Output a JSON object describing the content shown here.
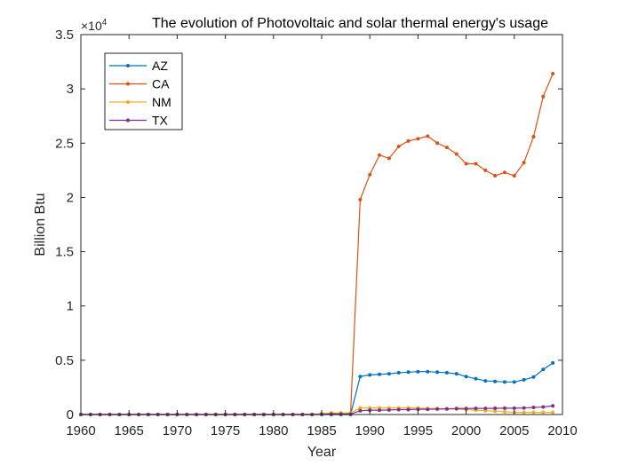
{
  "chart_data": {
    "type": "line",
    "title": "The evolution of Photovoltaic and solar thermal energy's usage",
    "xlabel": "Year",
    "ylabel": "Billion Btu",
    "xlim": [
      1960,
      2010
    ],
    "ylim": [
      0,
      35000
    ],
    "xticks": [
      1960,
      1965,
      1970,
      1975,
      1980,
      1985,
      1990,
      1995,
      2000,
      2005,
      2010
    ],
    "yticks": [
      0,
      5000,
      10000,
      15000,
      20000,
      25000,
      30000,
      35000
    ],
    "ytick_labels": [
      "0",
      "0.5",
      "1",
      "1.5",
      "2",
      "2.5",
      "3",
      "3.5"
    ],
    "y_exponent": {
      "base": "×10",
      "power": "4"
    },
    "grid": false,
    "legend_position": "top-left",
    "x": [
      1960,
      1961,
      1962,
      1963,
      1964,
      1965,
      1966,
      1967,
      1968,
      1969,
      1970,
      1971,
      1972,
      1973,
      1974,
      1975,
      1976,
      1977,
      1978,
      1979,
      1980,
      1981,
      1982,
      1983,
      1984,
      1985,
      1986,
      1987,
      1988,
      1989,
      1990,
      1991,
      1992,
      1993,
      1994,
      1995,
      1996,
      1997,
      1998,
      1999,
      2000,
      2001,
      2002,
      2003,
      2004,
      2005,
      2006,
      2007,
      2008,
      2009
    ],
    "series": [
      {
        "name": "AZ",
        "color": "#0072BD",
        "values": [
          0,
          0,
          0,
          0,
          0,
          0,
          0,
          0,
          0,
          0,
          0,
          0,
          0,
          0,
          0,
          0,
          0,
          0,
          0,
          0,
          0,
          0,
          0,
          0,
          0,
          0,
          0,
          0,
          0,
          3500,
          3650,
          3700,
          3750,
          3850,
          3900,
          3950,
          3950,
          3900,
          3850,
          3750,
          3500,
          3300,
          3100,
          3050,
          3000,
          3000,
          3200,
          3450,
          4150,
          4750
        ]
      },
      {
        "name": "CA",
        "color": "#D95319",
        "values": [
          0,
          0,
          0,
          0,
          0,
          0,
          0,
          0,
          0,
          0,
          0,
          0,
          0,
          0,
          0,
          0,
          0,
          0,
          0,
          0,
          0,
          0,
          0,
          0,
          0,
          50,
          100,
          100,
          100,
          19800,
          22100,
          23900,
          23600,
          24700,
          25200,
          25400,
          25650,
          25000,
          24600,
          24000,
          23100,
          23100,
          22500,
          22000,
          22300,
          22000,
          23200,
          25600,
          29300,
          31400
        ]
      },
      {
        "name": "NM",
        "color": "#EDB120",
        "values": [
          0,
          0,
          0,
          0,
          0,
          0,
          0,
          0,
          0,
          0,
          0,
          0,
          0,
          0,
          0,
          0,
          0,
          0,
          0,
          0,
          0,
          0,
          0,
          0,
          0,
          80,
          150,
          150,
          150,
          600,
          600,
          600,
          600,
          600,
          600,
          600,
          550,
          550,
          500,
          500,
          450,
          400,
          350,
          300,
          250,
          200,
          200,
          200,
          200,
          200
        ]
      },
      {
        "name": "TX",
        "color": "#7E2F8E",
        "values": [
          0,
          0,
          0,
          0,
          0,
          0,
          0,
          0,
          0,
          0,
          0,
          0,
          0,
          0,
          0,
          0,
          0,
          0,
          0,
          0,
          0,
          0,
          0,
          0,
          0,
          20,
          40,
          40,
          40,
          350,
          400,
          400,
          420,
          450,
          450,
          480,
          480,
          500,
          520,
          550,
          550,
          560,
          560,
          570,
          580,
          580,
          600,
          650,
          700,
          800
        ]
      }
    ]
  }
}
